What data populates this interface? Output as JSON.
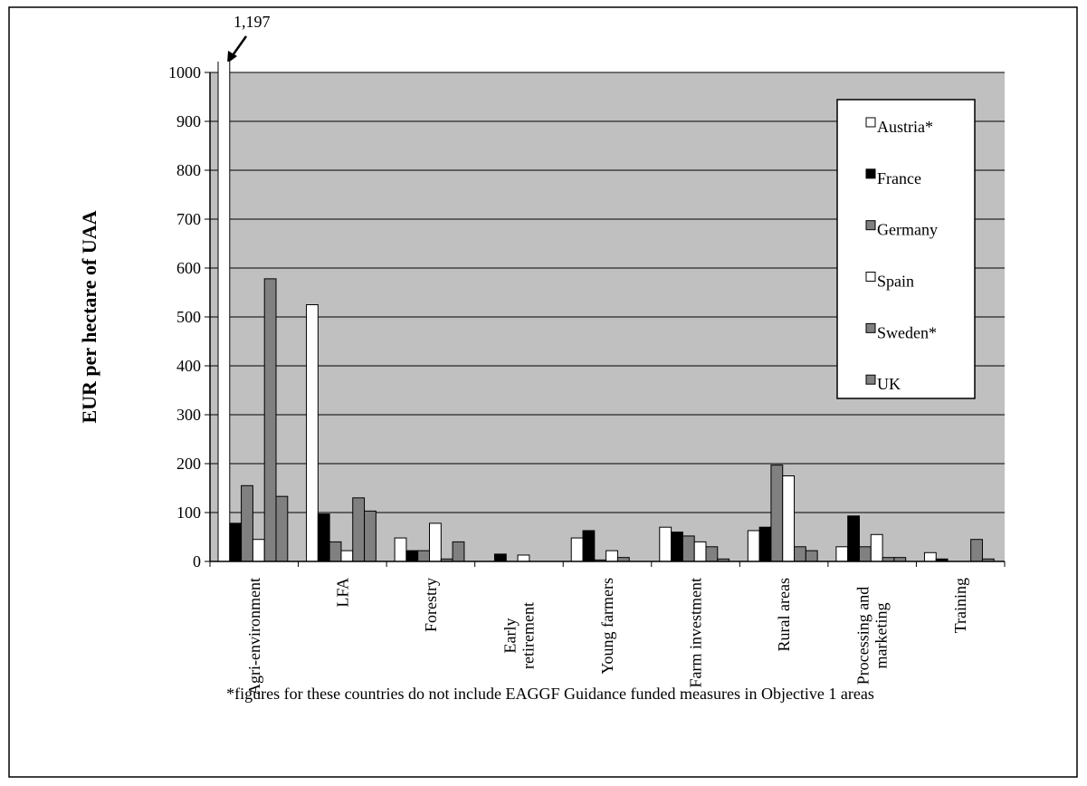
{
  "chart_data": {
    "type": "bar",
    "y_label": "EUR per hectare of UAA",
    "footnote": "*figures for these countries do not include EAGGF Guidance funded measures in Objective 1 areas",
    "categories": [
      "Agri-environment",
      "LFA",
      "Forestry",
      "Early retirement",
      "Young farmers",
      "Farm investment",
      "Rural areas",
      "Processing and marketing",
      "Training"
    ],
    "series": [
      {
        "name": "Austria*",
        "color": "#ffffff",
        "values": [
          1197,
          525,
          48,
          0,
          48,
          70,
          63,
          30,
          18
        ],
        "value_labels": [
          "1,197",
          null,
          null,
          null,
          null,
          null,
          null,
          null,
          null
        ]
      },
      {
        "name": "France",
        "color": "#000000",
        "values": [
          78,
          97,
          22,
          15,
          63,
          60,
          70,
          93,
          5
        ]
      },
      {
        "name": "Germany",
        "color": "#808080",
        "values": [
          155,
          40,
          22,
          0,
          3,
          52,
          197,
          30,
          0
        ]
      },
      {
        "name": "Spain",
        "color": "#ffffff",
        "values": [
          45,
          22,
          78,
          13,
          22,
          40,
          175,
          55,
          0
        ]
      },
      {
        "name": "Sweden*",
        "color": "#808080",
        "values": [
          578,
          130,
          5,
          0,
          8,
          30,
          30,
          8,
          45
        ]
      },
      {
        "name": "UK",
        "color": "#808080",
        "values": [
          133,
          103,
          40,
          0,
          0,
          5,
          22,
          8,
          5
        ]
      }
    ],
    "ylim": [
      0,
      1000
    ],
    "yticks": [
      0,
      100,
      200,
      300,
      400,
      500,
      600,
      700,
      800,
      900,
      1000
    ],
    "grid": true,
    "plot_background": "#c0c0c0",
    "legend": "upper right"
  }
}
